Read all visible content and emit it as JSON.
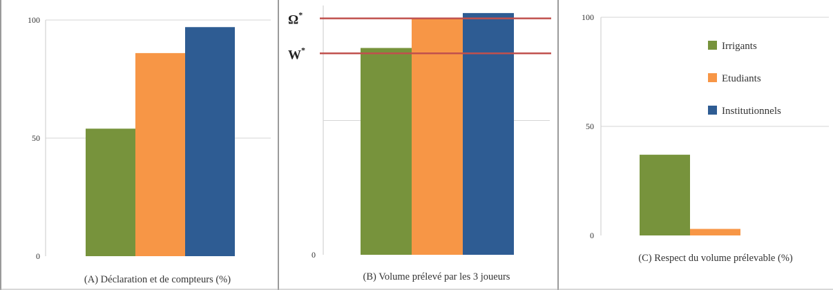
{
  "chart_data": [
    {
      "type": "bar",
      "title": "",
      "xlabel": "(A) Déclaration et de compteurs (%)",
      "ylabel": "",
      "ylim": [
        0,
        100
      ],
      "yticks": [
        0,
        50,
        100
      ],
      "categories": [
        "Irrigants",
        "Etudiants",
        "Institutionnels"
      ],
      "values": [
        54,
        86,
        97
      ],
      "grid": true,
      "legend": "none"
    },
    {
      "type": "bar",
      "title": "",
      "xlabel": "(B) Volume prélevé par les 3 joueurs",
      "ylabel": "",
      "ylim": [
        0,
        100
      ],
      "yticks": [
        0
      ],
      "categories": [
        "Irrigants",
        "Etudiants",
        "Institutionnels"
      ],
      "values": [
        77,
        88,
        90
      ],
      "grid": true,
      "legend": "none",
      "reference_lines": [
        {
          "label": "Ω",
          "sup": "*",
          "value": 88,
          "color": "#c0504d"
        },
        {
          "label": "W",
          "sup": "*",
          "value": 75,
          "color": "#c0504d"
        }
      ]
    },
    {
      "type": "bar",
      "title": "",
      "xlabel": "(C) Respect du volume prélevable (%)",
      "ylabel": "",
      "ylim": [
        0,
        100
      ],
      "yticks": [
        0,
        50,
        100
      ],
      "categories": [
        "Irrigants",
        "Etudiants",
        "Institutionnels"
      ],
      "values": [
        37,
        3,
        0
      ],
      "grid": true,
      "legend": "top-right",
      "series_names": [
        "Irrigants",
        "Etudiants",
        "Institutionnels"
      ]
    }
  ],
  "colors": [
    "#77933c",
    "#f79646",
    "#2e5c93"
  ],
  "reference_color": "#c0504d"
}
